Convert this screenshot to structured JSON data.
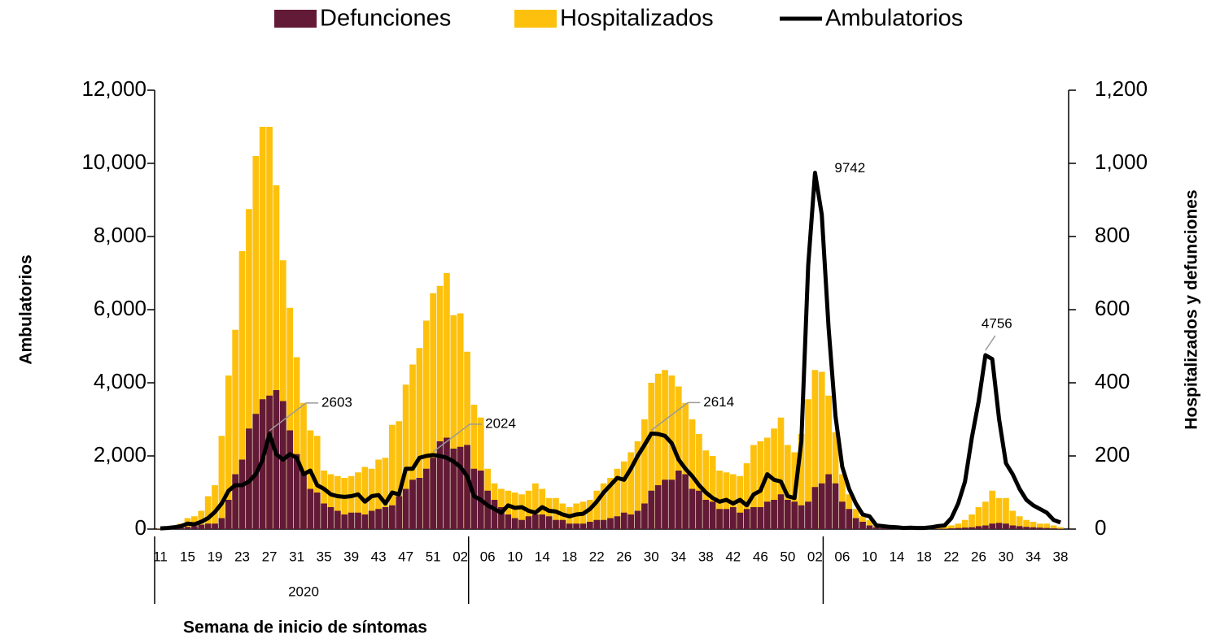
{
  "chart_data": {
    "type": "bar-line",
    "x_title": "Semana de inicio de síntomas",
    "y_title": "Ambulatorios",
    "y2_title": "Hospitalizados y defunciones",
    "year_label": "2020",
    "categories": [
      "11",
      null,
      null,
      null,
      "15",
      null,
      null,
      null,
      "19",
      null,
      null,
      null,
      "23",
      null,
      null,
      null,
      "27",
      null,
      null,
      null,
      "31",
      null,
      null,
      null,
      "35",
      null,
      null,
      null,
      "39",
      null,
      null,
      null,
      "43",
      null,
      null,
      null,
      "47",
      null,
      null,
      null,
      "51",
      null,
      null,
      null,
      "02",
      null,
      null,
      null,
      "06",
      null,
      null,
      null,
      "10",
      null,
      null,
      null,
      "14",
      null,
      null,
      null,
      "18",
      null,
      null,
      null,
      "22",
      null,
      null,
      null,
      "26",
      null,
      null,
      null,
      "30",
      null,
      null,
      null,
      "34",
      null,
      null,
      null,
      "38",
      null,
      null,
      null,
      "42",
      null,
      null,
      null,
      "46",
      null,
      null,
      null,
      "50",
      null,
      null,
      null,
      "02",
      null,
      null,
      null,
      "06",
      null,
      null,
      null,
      "10",
      null,
      null,
      null,
      "14",
      null,
      null,
      null,
      "18",
      null,
      null,
      null,
      "22",
      null,
      null,
      null,
      "26",
      null,
      null,
      null,
      "30",
      null,
      null,
      null,
      "34",
      null,
      null,
      null,
      "38"
    ],
    "ylim": [
      0,
      12000
    ],
    "yticks": [
      0,
      {
        "value": 2000,
        "label": "2,000"
      },
      {
        "value": 4000,
        "label": "4,000"
      },
      {
        "value": 6000,
        "label": "6,000"
      },
      {
        "value": 8000,
        "label": "8,000"
      },
      {
        "value": 10000,
        "label": "10,000"
      },
      {
        "value": 12000,
        "label": "12,000"
      }
    ],
    "y2lim": [
      0,
      1200
    ],
    "y2ticks": [
      0,
      200,
      400,
      600,
      800,
      {
        "value": 1000,
        "label": "1,000"
      },
      {
        "value": 1200,
        "label": "1,200"
      }
    ],
    "series": [
      {
        "name": "Defunciones",
        "type": "bar",
        "axis": "y2",
        "color": "#621a37",
        "values": [
          1,
          2,
          3,
          4,
          6,
          8,
          12,
          15,
          15,
          30,
          80,
          150,
          190,
          275,
          315,
          355,
          365,
          380,
          350,
          270,
          205,
          155,
          110,
          100,
          70,
          60,
          50,
          40,
          45,
          45,
          40,
          50,
          55,
          60,
          65,
          90,
          110,
          135,
          140,
          165,
          195,
          240,
          250,
          220,
          225,
          230,
          165,
          160,
          105,
          80,
          60,
          40,
          30,
          25,
          35,
          40,
          40,
          35,
          25,
          25,
          15,
          15,
          15,
          20,
          25,
          25,
          30,
          35,
          45,
          40,
          50,
          70,
          105,
          120,
          135,
          135,
          160,
          150,
          110,
          105,
          80,
          75,
          55,
          55,
          60,
          45,
          55,
          60,
          60,
          75,
          80,
          95,
          80,
          75,
          65,
          75,
          115,
          125,
          150,
          125,
          75,
          55,
          30,
          20,
          10,
          5,
          3,
          2,
          1,
          1,
          1,
          1,
          1,
          1,
          1,
          1,
          2,
          3,
          4,
          5,
          8,
          10,
          15,
          17,
          15,
          10,
          8,
          6,
          5,
          4,
          3,
          2,
          1
        ]
      },
      {
        "name": "Hospitalizados",
        "type": "bar",
        "axis": "y2",
        "color": "#fdc10d",
        "values": [
          2,
          5,
          10,
          15,
          30,
          35,
          50,
          90,
          120,
          255,
          420,
          545,
          760,
          875,
          1020,
          1100,
          1100,
          940,
          735,
          605,
          470,
          345,
          270,
          255,
          160,
          150,
          145,
          140,
          145,
          155,
          170,
          165,
          190,
          195,
          285,
          295,
          395,
          450,
          495,
          570,
          645,
          665,
          700,
          585,
          590,
          485,
          340,
          305,
          165,
          125,
          110,
          105,
          100,
          95,
          105,
          125,
          110,
          85,
          85,
          70,
          60,
          70,
          75,
          80,
          105,
          125,
          140,
          165,
          185,
          210,
          240,
          300,
          400,
          425,
          435,
          420,
          390,
          345,
          300,
          260,
          215,
          200,
          160,
          155,
          150,
          145,
          180,
          230,
          240,
          250,
          275,
          305,
          230,
          210,
          260,
          355,
          435,
          430,
          365,
          265,
          150,
          95,
          55,
          35,
          25,
          15,
          10,
          8,
          5,
          4,
          3,
          3,
          3,
          3,
          5,
          8,
          10,
          15,
          25,
          40,
          60,
          75,
          105,
          85,
          85,
          50,
          35,
          25,
          20,
          15,
          15,
          10,
          5
        ]
      },
      {
        "name": "Ambulatorios",
        "type": "line",
        "axis": "y",
        "color": "#000000",
        "values": [
          20,
          30,
          50,
          80,
          150,
          130,
          200,
          300,
          470,
          700,
          1050,
          1200,
          1200,
          1300,
          1500,
          1900,
          2603,
          2050,
          1900,
          2050,
          1950,
          1500,
          1600,
          1200,
          1100,
          950,
          900,
          880,
          900,
          950,
          750,
          900,
          930,
          700,
          1000,
          950,
          1650,
          1650,
          1950,
          2000,
          2024,
          2000,
          1950,
          1850,
          1700,
          1450,
          900,
          800,
          650,
          550,
          450,
          650,
          580,
          600,
          500,
          450,
          600,
          500,
          480,
          400,
          350,
          400,
          420,
          550,
          750,
          1000,
          1200,
          1400,
          1350,
          1650,
          2000,
          2300,
          2614,
          2600,
          2550,
          2350,
          1900,
          1650,
          1450,
          1200,
          1000,
          850,
          750,
          800,
          700,
          800,
          650,
          950,
          1050,
          1500,
          1350,
          1300,
          900,
          850,
          2400,
          7200,
          9742,
          8600,
          5500,
          3100,
          1700,
          1100,
          700,
          400,
          350,
          100,
          80,
          60,
          50,
          30,
          40,
          30,
          30,
          50,
          80,
          100,
          300,
          700,
          1300,
          2500,
          3500,
          4756,
          4650,
          3000,
          1800,
          1500,
          1100,
          800,
          650,
          550,
          450,
          250,
          180
        ],
        "value_labels": [
          null,
          null,
          null,
          null,
          null,
          null,
          null,
          null,
          null,
          null,
          null,
          null,
          null,
          null,
          null,
          null,
          "2603",
          null,
          null,
          null,
          null,
          null,
          null,
          null,
          null,
          null,
          null,
          null,
          null,
          null,
          null,
          null,
          null,
          null,
          null,
          null,
          null,
          null,
          null,
          null,
          "2024",
          null,
          null,
          null,
          null,
          null,
          null,
          null,
          null,
          null,
          null,
          null,
          null,
          null,
          null,
          null,
          null,
          null,
          null,
          null,
          null,
          null,
          null,
          null,
          null,
          null,
          null,
          null,
          null,
          null,
          null,
          null,
          "2614",
          null,
          null,
          null,
          null,
          null,
          null,
          null,
          null,
          null,
          null,
          null,
          null,
          null,
          null,
          null,
          null,
          null,
          null,
          null,
          null,
          null,
          null,
          null,
          "9742",
          null,
          null,
          null,
          null,
          null,
          null,
          null,
          null,
          null,
          null,
          null,
          null,
          null,
          null,
          null,
          null,
          null,
          null,
          null,
          null,
          null,
          null,
          null,
          null,
          "4756",
          null,
          null,
          null,
          null,
          null,
          null,
          null,
          null,
          null,
          null,
          null
        ]
      }
    ],
    "legend": "top"
  }
}
